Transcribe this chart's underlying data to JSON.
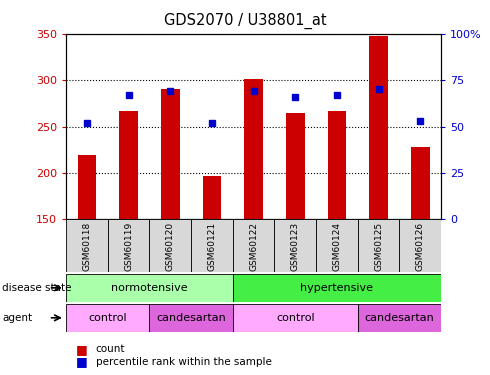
{
  "title": "GDS2070 / U38801_at",
  "samples": [
    "GSM60118",
    "GSM60119",
    "GSM60120",
    "GSM60121",
    "GSM60122",
    "GSM60123",
    "GSM60124",
    "GSM60125",
    "GSM60126"
  ],
  "counts": [
    219,
    267,
    291,
    197,
    301,
    265,
    267,
    348,
    228
  ],
  "percentiles": [
    52,
    67,
    69,
    52,
    69,
    66,
    67,
    70,
    53
  ],
  "ylim_left": [
    150,
    350
  ],
  "ylim_right": [
    0,
    100
  ],
  "yticks_left": [
    150,
    200,
    250,
    300,
    350
  ],
  "yticks_right": [
    0,
    25,
    50,
    75,
    100
  ],
  "ytick_right_labels": [
    "0",
    "25",
    "50",
    "75",
    "100%"
  ],
  "bar_color": "#cc0000",
  "dot_color": "#0000cc",
  "disease_state_groups": [
    {
      "label": "normotensive",
      "start": 0,
      "end": 4,
      "color": "#aaffaa"
    },
    {
      "label": "hypertensive",
      "start": 4,
      "end": 9,
      "color": "#44ee44"
    }
  ],
  "agent_groups": [
    {
      "label": "control",
      "start": 0,
      "end": 2,
      "color": "#ffaaff"
    },
    {
      "label": "candesartan",
      "start": 2,
      "end": 4,
      "color": "#dd66dd"
    },
    {
      "label": "control",
      "start": 4,
      "end": 7,
      "color": "#ffaaff"
    },
    {
      "label": "candesartan",
      "start": 7,
      "end": 9,
      "color": "#dd66dd"
    }
  ],
  "legend_count_label": "count",
  "legend_pct_label": "percentile rank within the sample",
  "tick_label_color_left": "#cc0000",
  "tick_label_color_right": "#0000cc",
  "sample_cell_color": "#d8d8d8",
  "bar_width": 0.45
}
